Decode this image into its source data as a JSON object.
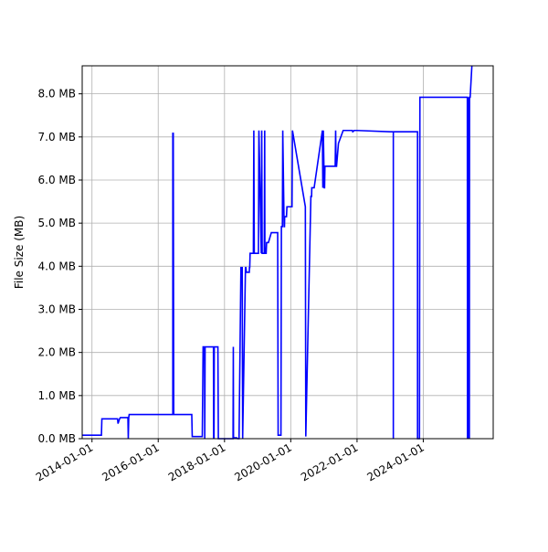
{
  "chart_data": {
    "type": "line",
    "title": "",
    "xlabel": "",
    "ylabel": "File Size (MB)",
    "grid": true,
    "legend": "none",
    "line_color": "#0000ff",
    "x_range": [
      "2013-09-15",
      "2026-02-10"
    ],
    "y_range": [
      0,
      8.65
    ],
    "x_ticks": [
      {
        "date": "2014-01-01",
        "label": "2014-01-01"
      },
      {
        "date": "2016-01-01",
        "label": "2016-01-01"
      },
      {
        "date": "2018-01-01",
        "label": "2018-01-01"
      },
      {
        "date": "2020-01-01",
        "label": "2020-01-01"
      },
      {
        "date": "2022-01-01",
        "label": "2022-01-01"
      },
      {
        "date": "2024-01-01",
        "label": "2024-01-01"
      }
    ],
    "y_ticks": [
      {
        "value": 0,
        "label": "0.0 MB"
      },
      {
        "value": 1,
        "label": "1.0 MB"
      },
      {
        "value": 2,
        "label": "2.0 MB"
      },
      {
        "value": 3,
        "label": "3.0 MB"
      },
      {
        "value": 4,
        "label": "4.0 MB"
      },
      {
        "value": 5,
        "label": "5.0 MB"
      },
      {
        "value": 6,
        "label": "6.0 MB"
      },
      {
        "value": 7,
        "label": "7.0 MB"
      },
      {
        "value": 8,
        "label": "8.0 MB"
      }
    ],
    "series": [
      {
        "x": [
          "2013-09-15",
          "2014-04-15",
          "2014-04-20",
          "2014-10-10",
          "2014-10-15",
          "2014-11-01",
          "2014-11-10",
          "2014-11-20",
          "2015-02-01",
          "2015-02-05",
          "2015-02-10",
          "2015-02-15",
          "2016-06-10",
          "2016-06-10",
          "2016-06-10",
          "2016-06-15",
          "2016-06-20",
          "2016-06-25",
          "2017-01-05",
          "2017-01-10",
          "2017-02-20",
          "2017-03-01",
          "2017-04-10",
          "2017-04-12",
          "2017-04-14",
          "2017-04-16",
          "2017-04-18",
          "2017-05-01",
          "2017-05-10",
          "2017-05-20",
          "2017-05-25",
          "2017-05-28",
          "2017-06-01",
          "2017-06-05",
          "2017-09-01",
          "2017-09-03",
          "2017-09-05",
          "2017-09-07",
          "2017-09-10",
          "2017-10-20",
          "2017-10-25",
          "2017-11-10",
          "2018-03-20",
          "2018-03-25",
          "2018-03-30",
          "2018-04-05",
          "2018-04-08",
          "2018-04-10",
          "2018-04-12",
          "2018-04-15",
          "2018-05-01",
          "2018-05-15",
          "2018-05-25",
          "2018-06-10",
          "2018-07-01",
          "2018-07-05",
          "2018-07-10",
          "2018-07-15",
          "2018-07-20",
          "2018-08-20",
          "2018-08-25",
          "2018-08-30",
          "2018-10-01",
          "2018-10-03",
          "2018-10-06",
          "2018-10-10",
          "2018-10-15",
          "2018-11-15",
          "2018-11-20",
          "2018-11-25",
          "2019-01-10",
          "2019-01-15",
          "2019-02-10",
          "2019-02-15",
          "2019-02-20",
          "2019-03-15",
          "2019-03-20",
          "2019-03-22",
          "2019-04-05",
          "2019-04-10",
          "2019-04-25",
          "2019-04-30",
          "2019-06-01",
          "2019-06-05",
          "2019-08-10",
          "2019-08-15",
          "2019-09-15",
          "2019-09-20",
          "2019-10-01",
          "2019-10-05",
          "2019-10-20",
          "2019-10-24",
          "2019-10-26",
          "2019-11-15",
          "2019-11-20",
          "2020-01-15",
          "2020-01-20",
          "2020-06-10",
          "2020-06-15",
          "2020-08-10",
          "2020-08-15",
          "2020-08-18",
          "2020-08-20",
          "2020-09-01",
          "2020-09-05",
          "2020-09-10",
          "2020-09-15",
          "2020-12-15",
          "2020-12-20",
          "2020-12-25",
          "2021-01-05",
          "2021-01-08",
          "2021-01-12",
          "2021-05-01",
          "2021-05-05",
          "2021-05-10",
          "2021-05-15",
          "2021-05-20",
          "2021-06-10",
          "2021-08-01",
          "2021-09-01",
          "2021-10-01",
          "2021-11-10",
          "2021-11-15",
          "2021-12-01",
          "2022-01-01",
          "2023-01-01",
          "2023-02-05",
          "2023-02-05",
          "2023-02-05",
          "2023-02-10",
          "2023-10-30",
          "2023-10-30",
          "2023-11-20",
          "2023-11-25",
          "2025-05-01",
          "2025-05-01",
          "2025-05-03",
          "2025-05-05",
          "2025-05-07",
          "2025-05-09",
          "2025-05-11",
          "2025-05-13",
          "2025-05-15",
          "2025-05-17",
          "2025-05-19",
          "2025-05-21",
          "2025-05-23",
          "2025-05-25",
          "2025-06-01",
          "2025-06-20",
          "2025-06-20"
        ],
        "y": [
          0.08,
          0.08,
          0.46,
          0.46,
          0.35,
          0.46,
          0.49,
          0.49,
          0.49,
          0.0,
          0.49,
          0.56,
          0.56,
          7.1,
          0.56,
          7.1,
          0.56,
          0.56,
          0.56,
          0.05,
          0.05,
          0.05,
          0.05,
          0.05,
          0.05,
          0.05,
          0.05,
          0.05,
          2.13,
          2.13,
          2.13,
          0.0,
          2.13,
          2.13,
          2.13,
          0.0,
          2.13,
          0.0,
          2.13,
          2.13,
          0.0,
          0.0,
          0.0,
          0.0,
          0.0,
          0.0,
          2.13,
          0.0,
          0.02,
          0.02,
          0.02,
          0.02,
          0.0,
          0.0,
          3.97,
          3.97,
          3.97,
          3.97,
          0.0,
          3.97,
          3.97,
          3.86,
          3.86,
          3.97,
          3.97,
          4.3,
          4.3,
          4.3,
          7.15,
          4.3,
          4.3,
          7.15,
          4.3,
          7.15,
          4.3,
          4.3,
          7.15,
          4.3,
          4.3,
          4.55,
          4.55,
          4.55,
          4.78,
          4.78,
          4.78,
          0.08,
          0.08,
          4.92,
          4.92,
          7.15,
          4.92,
          4.92,
          5.15,
          5.15,
          5.38,
          5.38,
          7.15,
          5.38,
          0.05,
          5.62,
          5.62,
          5.62,
          5.82,
          5.82,
          5.82,
          5.82,
          5.82,
          7.15,
          5.82,
          7.15,
          5.82,
          5.82,
          6.32,
          6.32,
          6.32,
          7.15,
          6.32,
          6.32,
          6.85,
          7.15,
          7.15,
          7.15,
          7.15,
          7.12,
          7.15,
          7.15,
          7.12,
          7.12,
          0.0,
          7.12,
          7.12,
          7.12,
          0.0,
          0.0,
          7.92,
          7.92,
          7.92,
          0.0,
          7.92,
          0.0,
          7.92,
          0.0,
          7.92,
          0.0,
          7.92,
          0.0,
          7.92,
          0.0,
          7.92,
          7.92,
          8.65,
          8.65
        ]
      }
    ]
  }
}
